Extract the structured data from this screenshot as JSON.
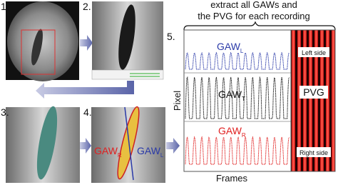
{
  "panels": [
    {
      "label": "1."
    },
    {
      "label": "2."
    },
    {
      "label": "3."
    },
    {
      "label": "4.",
      "left": {
        "main": "GAW",
        "sub": "R"
      },
      "right": {
        "main": "GAW",
        "sub": "L"
      }
    },
    {
      "label": "5."
    }
  ],
  "header": {
    "line1": "extract all GAWs and",
    "line2": "the PVG for each recording"
  },
  "plot": {
    "y_label": "Pixel",
    "x_label": "Frames",
    "traces": [
      {
        "main": "GAW",
        "sub": "L"
      },
      {
        "main": "GAW",
        "sub": "T"
      },
      {
        "main": "GAW",
        "sub": "R"
      }
    ]
  },
  "pvg": {
    "title": "PVG",
    "top": "Left side",
    "bottom": "Right side"
  }
}
